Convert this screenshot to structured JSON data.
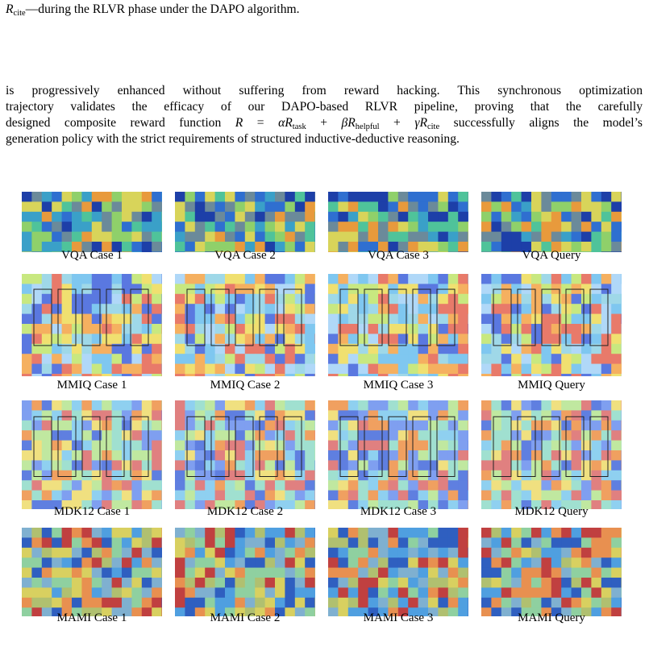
{
  "top_line": [
    {
      "math": "R"
    },
    {
      "sub": "cite"
    },
    "—during the RLVR phase under the DAPO algorithm."
  ],
  "paragraph": {
    "lines": [
      [
        "is progressively enhanced without suffering from reward hacking. This synchronous optimization"
      ],
      [
        "trajectory validates the efficacy of our DAPO-based RLVR pipeline, proving that the carefully"
      ],
      [
        "designed composite reward function ",
        {
          "math": "R"
        },
        " = ",
        {
          "math": "αR"
        },
        {
          "sub": "task"
        },
        " + ",
        {
          "math": "βR"
        },
        {
          "sub": "helpful"
        },
        " + ",
        {
          "math": "γR"
        },
        {
          "sub": "cite"
        },
        " successfully aligns the model’s"
      ],
      [
        "generation policy with the strict requirements of structured inductive-deductive reasoning."
      ]
    ]
  },
  "figure": {
    "rows": [
      [
        "VQA Case 1",
        "VQA Case 2",
        "VQA Case 3",
        "VQA Query"
      ],
      [
        "MMIQ Case 1",
        "MMIQ Case 2",
        "MMIQ Case 3",
        "MMIQ Query"
      ],
      [
        "MDK12 Case 1",
        "MDK12 Case 2",
        "MDK12 Case 3",
        "MDK12 Query"
      ],
      [
        "MAMI Case 1",
        "MAMI Case 2",
        "MAMI Case 3",
        "MAMI Query"
      ]
    ]
  }
}
